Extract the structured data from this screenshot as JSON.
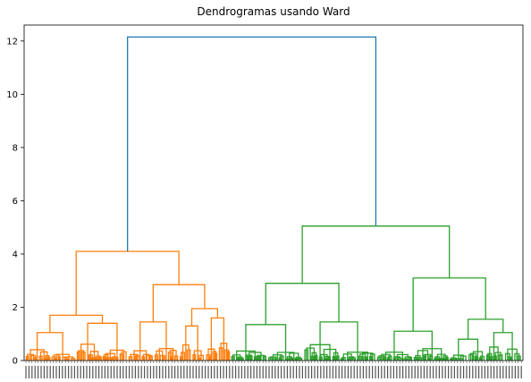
{
  "chart_data": {
    "type": "dendrogram",
    "title": "Dendrogramas usando Ward",
    "xlabel": "",
    "ylabel": "",
    "ylim": [
      0,
      12.6
    ],
    "y_ticks": [
      0,
      2,
      4,
      6,
      8,
      10,
      12
    ],
    "grid": false,
    "legend": "none",
    "colors": {
      "root": "#1f77b4",
      "cluster_1": "#ff7f0e",
      "cluster_2": "#2ca02c"
    },
    "merges": {
      "root": 12.15,
      "cluster_1": {
        "height": 4.1,
        "left": {
          "height": 1.7,
          "left": {
            "height": 1.05
          },
          "right": {
            "height": 1.4
          }
        },
        "right": {
          "height": 2.85,
          "left": {
            "height": 1.45
          },
          "right": {
            "height": 1.95,
            "left": {
              "height": 1.3
            },
            "right": {
              "height": 1.6
            }
          }
        }
      },
      "cluster_2": {
        "height": 5.05,
        "left": {
          "height": 2.9,
          "left": {
            "height": 1.35
          },
          "right": {
            "height": 1.45
          }
        },
        "right": {
          "height": 3.1,
          "left": {
            "height": 1.1
          },
          "right": {
            "height": 1.55,
            "left": {
              "height": 0.8
            },
            "right": {
              "height": 1.05
            }
          }
        }
      }
    }
  }
}
